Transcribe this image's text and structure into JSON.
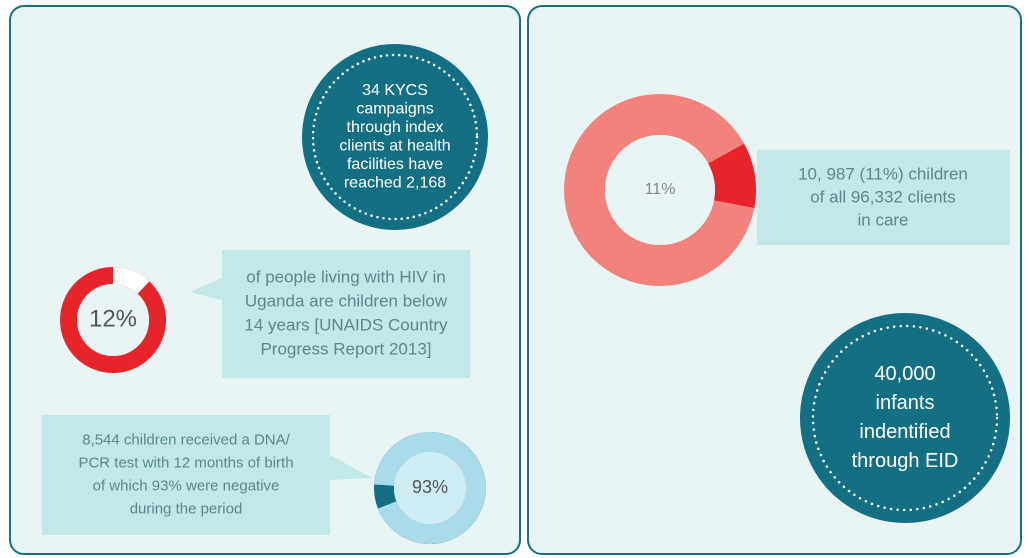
{
  "left": {
    "campaigns": {
      "lines": [
        "34 KYCS",
        "campaigns",
        "through index",
        "clients at health",
        "facilities have",
        "reached 2,168"
      ]
    },
    "hiv_children": {
      "donut": {
        "value": 12,
        "label": "12%"
      },
      "lines": [
        "of people living with HIV in",
        "Uganda are children below",
        "14 years [UNAIDS Country",
        "Progress Report 2013]"
      ]
    },
    "pcr": {
      "donut": {
        "value": 93,
        "label": "93%"
      },
      "lines": [
        "8,544 children received a DNA/",
        "PCR test with 12 months of birth",
        "of which 93% were negative",
        "during the period"
      ]
    }
  },
  "right": {
    "in_care": {
      "donut": {
        "value": 11,
        "label": "11%"
      },
      "lines": [
        "10, 987 (11%) children",
        "of all 96,332 clients",
        "in care"
      ]
    },
    "eid": {
      "lines": [
        "40,000",
        "infants",
        "indentified",
        "through EID"
      ]
    }
  }
}
